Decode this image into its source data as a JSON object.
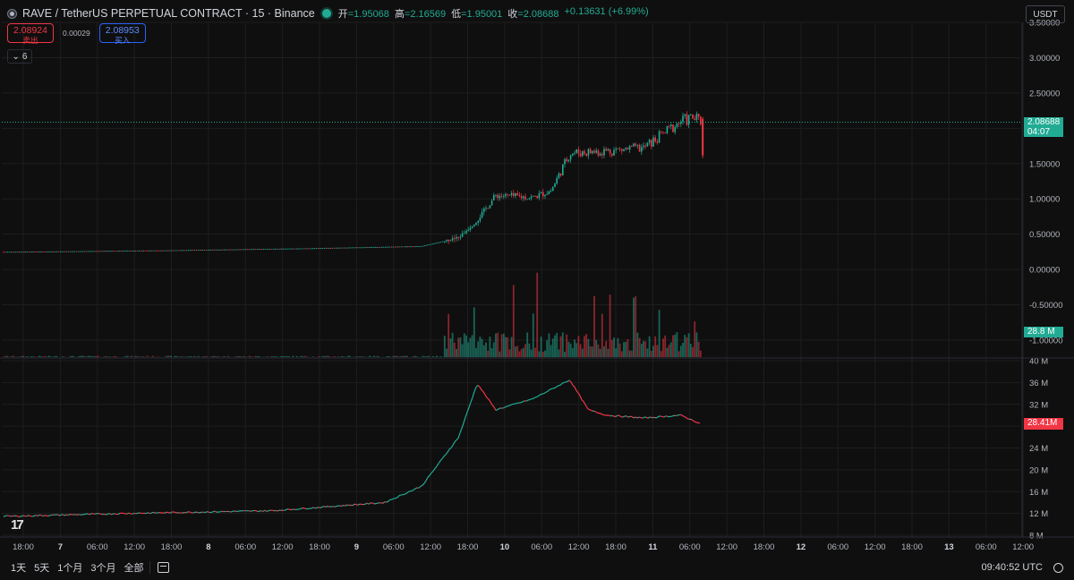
{
  "header": {
    "title": "RAVE / TetherUS PERPETUAL CONTRACT · 15 · Binance",
    "ohlc": [
      {
        "k": "开",
        "v": "=1.95068"
      },
      {
        "k": "高",
        "v": "=2.16569"
      },
      {
        "k": "低",
        "v": "=1.95001"
      },
      {
        "k": "收",
        "v": "=2.08688"
      }
    ],
    "change": "+0.13631 (+6.99%)"
  },
  "quote": {
    "sell_price": "2.08924",
    "sell_label": "卖出",
    "spread": "0.00029",
    "buy_price": "2.08953",
    "buy_label": "买入"
  },
  "indicators_toggle": "6",
  "currency_button": "USDT",
  "price_axis": {
    "labels": [
      "3.50000",
      "3.00000",
      "2.50000",
      "2.00000",
      "1.50000",
      "1.00000",
      "0.50000",
      "0.00000",
      "-0.50000",
      "-1.00000"
    ],
    "last_price": "2.08688",
    "countdown": "04:07",
    "volume_value": "28.8 M"
  },
  "oi_axis": {
    "labels": [
      "40 M",
      "36 M",
      "32 M",
      "28 M",
      "24 M",
      "20 M",
      "16 M",
      "12 M",
      "8 M"
    ],
    "current": "28.41M"
  },
  "time_axis": {
    "labels": [
      "18:00",
      "7",
      "06:00",
      "12:00",
      "18:00",
      "8",
      "06:00",
      "12:00",
      "18:00",
      "9",
      "06:00",
      "12:00",
      "18:00",
      "10",
      "06:00",
      "12:00",
      "18:00",
      "11",
      "06:00",
      "12:00",
      "18:00",
      "12",
      "06:00",
      "12:00",
      "18:00",
      "13",
      "06:00",
      "12:00"
    ]
  },
  "bottom_bar": {
    "ranges": [
      "1天",
      "5天",
      "1个月",
      "3个月",
      "全部"
    ],
    "clock": "09:40:52 UTC"
  },
  "colors": {
    "up": "#22ab94",
    "down": "#f23645",
    "background": "#0f0f0f",
    "grid": "#1e1e1e"
  },
  "chart_data": {
    "type": "line",
    "price_series": {
      "x": [
        "6 18:00",
        "7 18:00",
        "8 18:00",
        "9 12:00",
        "9 18:00",
        "9 21:00",
        "10 00:00",
        "10 06:00",
        "10 09:00",
        "10 12:00",
        "10 18:00",
        "11 00:00",
        "11 06:00",
        "11 08:00",
        "11 09:15"
      ],
      "y": [
        0.25,
        0.27,
        0.3,
        0.33,
        0.45,
        0.7,
        1.05,
        1.02,
        1.12,
        1.65,
        1.68,
        1.72,
        2.1,
        2.15,
        2.09
      ]
    },
    "open_interest": {
      "x": [
        "6 18:00",
        "7 12:00",
        "8 12:00",
        "9 06:00",
        "9 12:00",
        "9 18:00",
        "9 21:00",
        "10 00:00",
        "10 06:00",
        "10 12:00",
        "10 15:00",
        "10 18:00",
        "11 00:00",
        "11 06:00",
        "11 09:15"
      ],
      "y": [
        11.5,
        12.0,
        12.5,
        14.0,
        17.0,
        26.0,
        35.8,
        31.0,
        33.0,
        36.5,
        31.0,
        30.0,
        29.5,
        30.0,
        28.41
      ]
    },
    "ylim": [
      -1.0,
      3.5
    ],
    "oi_ylim": [
      8,
      40
    ]
  }
}
